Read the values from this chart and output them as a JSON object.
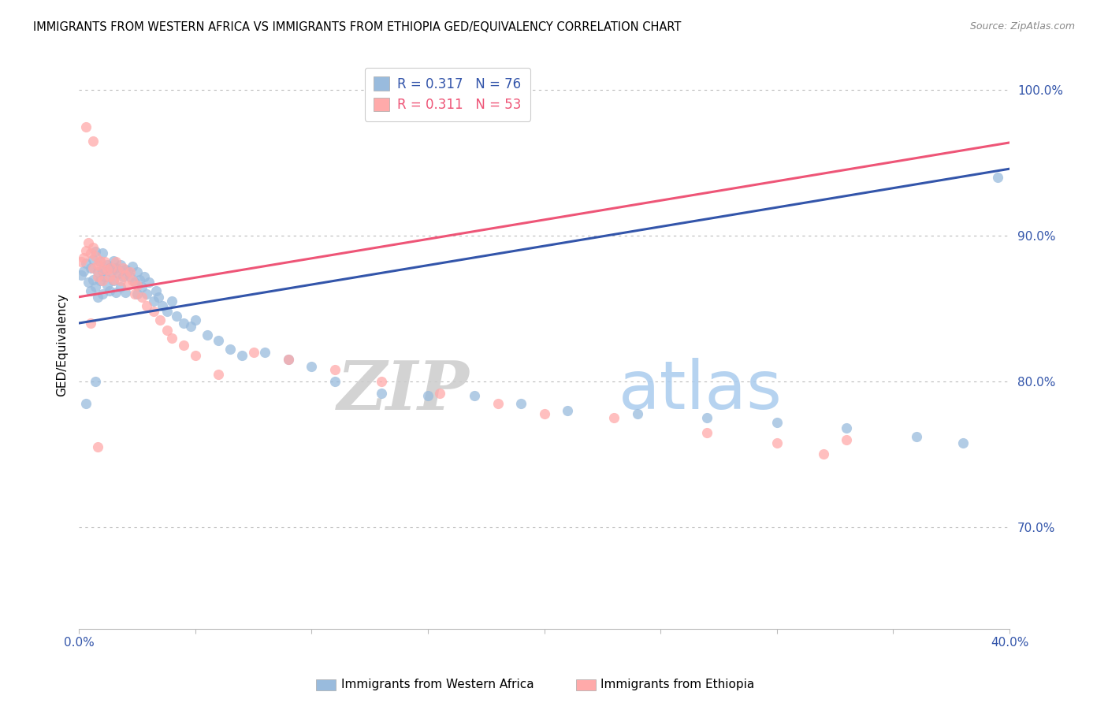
{
  "title": "IMMIGRANTS FROM WESTERN AFRICA VS IMMIGRANTS FROM ETHIOPIA GED/EQUIVALENCY CORRELATION CHART",
  "source": "Source: ZipAtlas.com",
  "ylabel": "GED/Equivalency",
  "xlim": [
    0.0,
    0.4
  ],
  "ylim": [
    0.63,
    1.02
  ],
  "yticks": [
    0.7,
    0.8,
    0.9,
    1.0
  ],
  "ytick_labels": [
    "70.0%",
    "80.0%",
    "90.0%",
    "100.0%"
  ],
  "xticks": [
    0.0,
    0.05,
    0.1,
    0.15,
    0.2,
    0.25,
    0.3,
    0.35,
    0.4
  ],
  "xtick_labels": [
    "0.0%",
    "",
    "",
    "",
    "",
    "",
    "",
    "",
    "40.0%"
  ],
  "blue_R": 0.317,
  "blue_N": 76,
  "pink_R": 0.311,
  "pink_N": 53,
  "blue_color": "#99BBDD",
  "pink_color": "#FFAAAA",
  "blue_line_color": "#3355AA",
  "pink_line_color": "#EE5577",
  "legend_label_blue": "Immigrants from Western Africa",
  "legend_label_pink": "Immigrants from Ethiopia",
  "watermark_zip": "ZIP",
  "watermark_atlas": "atlas",
  "blue_scatter_x": [
    0.001,
    0.002,
    0.003,
    0.004,
    0.005,
    0.005,
    0.006,
    0.006,
    0.007,
    0.007,
    0.008,
    0.008,
    0.009,
    0.009,
    0.01,
    0.01,
    0.01,
    0.011,
    0.012,
    0.012,
    0.013,
    0.013,
    0.014,
    0.015,
    0.015,
    0.016,
    0.016,
    0.017,
    0.018,
    0.018,
    0.019,
    0.02,
    0.02,
    0.021,
    0.022,
    0.023,
    0.024,
    0.025,
    0.025,
    0.026,
    0.027,
    0.028,
    0.029,
    0.03,
    0.032,
    0.033,
    0.034,
    0.036,
    0.038,
    0.04,
    0.042,
    0.045,
    0.048,
    0.05,
    0.055,
    0.06,
    0.065,
    0.07,
    0.08,
    0.09,
    0.1,
    0.11,
    0.13,
    0.15,
    0.17,
    0.19,
    0.21,
    0.24,
    0.27,
    0.3,
    0.33,
    0.36,
    0.38,
    0.395,
    0.003,
    0.007
  ],
  "blue_scatter_y": [
    0.873,
    0.876,
    0.881,
    0.868,
    0.878,
    0.862,
    0.884,
    0.87,
    0.889,
    0.865,
    0.875,
    0.858,
    0.882,
    0.869,
    0.888,
    0.876,
    0.86,
    0.872,
    0.88,
    0.866,
    0.878,
    0.862,
    0.875,
    0.883,
    0.869,
    0.878,
    0.861,
    0.874,
    0.88,
    0.865,
    0.872,
    0.877,
    0.861,
    0.876,
    0.872,
    0.879,
    0.868,
    0.875,
    0.86,
    0.87,
    0.865,
    0.872,
    0.86,
    0.868,
    0.855,
    0.862,
    0.858,
    0.852,
    0.848,
    0.855,
    0.845,
    0.84,
    0.838,
    0.842,
    0.832,
    0.828,
    0.822,
    0.818,
    0.82,
    0.815,
    0.81,
    0.8,
    0.792,
    0.79,
    0.79,
    0.785,
    0.78,
    0.778,
    0.775,
    0.772,
    0.768,
    0.762,
    0.758,
    0.94,
    0.785,
    0.8
  ],
  "pink_scatter_x": [
    0.001,
    0.002,
    0.003,
    0.004,
    0.005,
    0.006,
    0.006,
    0.007,
    0.008,
    0.008,
    0.009,
    0.01,
    0.01,
    0.011,
    0.012,
    0.013,
    0.014,
    0.015,
    0.016,
    0.017,
    0.018,
    0.019,
    0.02,
    0.021,
    0.022,
    0.023,
    0.024,
    0.025,
    0.027,
    0.029,
    0.032,
    0.035,
    0.038,
    0.04,
    0.045,
    0.05,
    0.06,
    0.075,
    0.09,
    0.11,
    0.13,
    0.155,
    0.18,
    0.2,
    0.23,
    0.27,
    0.3,
    0.33,
    0.005,
    0.008,
    0.003,
    0.006,
    0.32
  ],
  "pink_scatter_y": [
    0.882,
    0.885,
    0.89,
    0.895,
    0.888,
    0.892,
    0.878,
    0.886,
    0.88,
    0.872,
    0.883,
    0.877,
    0.869,
    0.882,
    0.877,
    0.872,
    0.878,
    0.87,
    0.882,
    0.876,
    0.869,
    0.878,
    0.873,
    0.866,
    0.875,
    0.869,
    0.86,
    0.866,
    0.858,
    0.852,
    0.848,
    0.842,
    0.835,
    0.83,
    0.825,
    0.818,
    0.805,
    0.82,
    0.815,
    0.808,
    0.8,
    0.792,
    0.785,
    0.778,
    0.775,
    0.765,
    0.758,
    0.76,
    0.84,
    0.755,
    0.975,
    0.965,
    0.75
  ]
}
